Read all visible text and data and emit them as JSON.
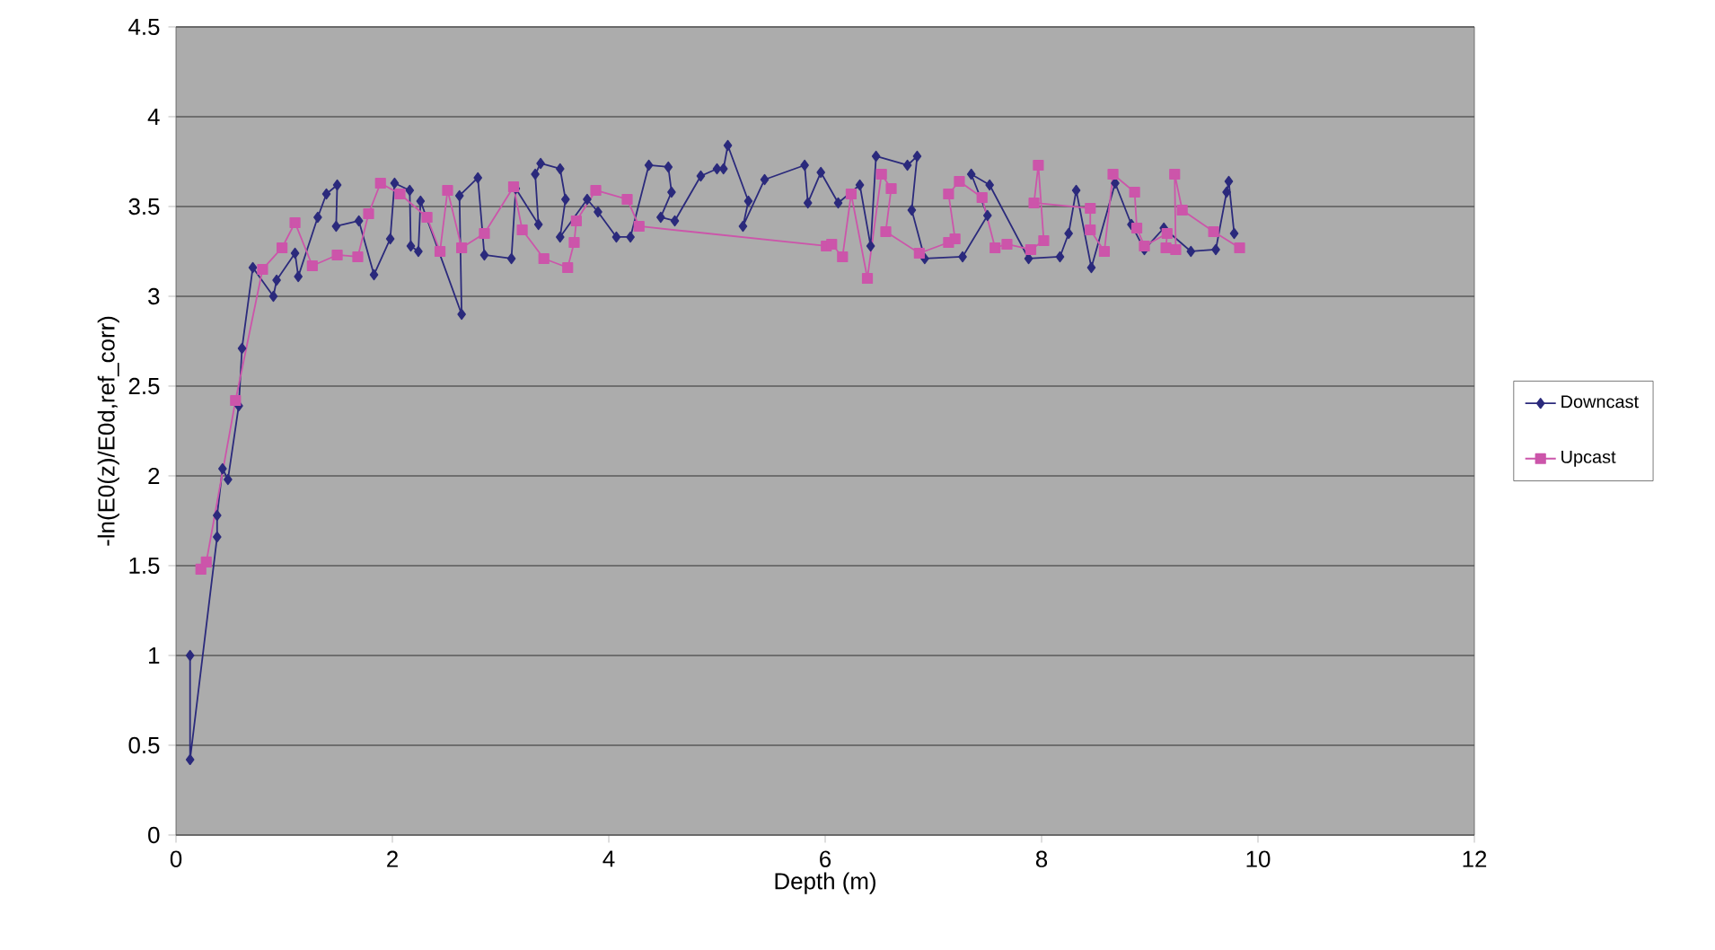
{
  "chart_data": {
    "type": "line",
    "xlabel": "Depth (m)",
    "ylabel": "-ln(E0(z)/E0d,ref_corr)",
    "xlim": [
      0,
      12
    ],
    "xticks": [
      0,
      2,
      4,
      6,
      8,
      10,
      12
    ],
    "ylim": [
      0,
      4.5
    ],
    "yticks": [
      0,
      0.5,
      1,
      1.5,
      2,
      2.5,
      3,
      3.5,
      4,
      4.5
    ],
    "grid": "y",
    "legend": "right",
    "line_style": "solid",
    "series": [
      {
        "name": "Downcast",
        "color": "#2b2a7c",
        "marker": "diamond",
        "x": [
          0.13,
          0.13,
          0.38,
          0.38,
          0.43,
          0.48,
          0.58,
          0.61,
          0.71,
          0.9,
          0.93,
          1.1,
          1.13,
          1.31,
          1.39,
          1.49,
          1.48,
          1.69,
          1.83,
          1.98,
          2.02,
          2.16,
          2.17,
          2.24,
          2.26,
          2.64,
          2.62,
          2.79,
          2.85,
          3.1,
          3.14,
          3.35,
          3.32,
          3.37,
          3.55,
          3.6,
          3.55,
          3.8,
          3.9,
          4.07,
          4.2,
          4.37,
          4.55,
          4.58,
          4.48,
          4.61,
          4.85,
          5.0,
          5.06,
          5.1,
          5.29,
          5.24,
          5.44,
          5.81,
          5.84,
          5.96,
          6.12,
          6.32,
          6.42,
          6.47,
          6.76,
          6.85,
          6.8,
          6.92,
          7.27,
          7.5,
          7.35,
          7.52,
          7.88,
          8.17,
          8.25,
          8.32,
          8.46,
          8.68,
          8.83,
          8.95,
          9.13,
          9.38,
          9.61,
          9.71,
          9.73,
          9.78
        ],
        "values": [
          1.0,
          0.42,
          1.66,
          1.78,
          2.04,
          1.98,
          2.39,
          2.71,
          3.16,
          3.0,
          3.09,
          3.24,
          3.11,
          3.44,
          3.57,
          3.62,
          3.39,
          3.42,
          3.12,
          3.32,
          3.63,
          3.59,
          3.28,
          3.25,
          3.53,
          2.9,
          3.56,
          3.66,
          3.23,
          3.21,
          3.6,
          3.4,
          3.68,
          3.74,
          3.71,
          3.54,
          3.33,
          3.54,
          3.47,
          3.33,
          3.33,
          3.73,
          3.72,
          3.58,
          3.44,
          3.42,
          3.67,
          3.71,
          3.71,
          3.84,
          3.53,
          3.39,
          3.65,
          3.73,
          3.52,
          3.69,
          3.52,
          3.62,
          3.28,
          3.78,
          3.73,
          3.78,
          3.48,
          3.21,
          3.22,
          3.45,
          3.68,
          3.62,
          3.21,
          3.22,
          3.35,
          3.59,
          3.16,
          3.63,
          3.4,
          3.26,
          3.38,
          3.25,
          3.26,
          3.58,
          3.64,
          3.35
        ]
      },
      {
        "name": "Upcast",
        "color": "#cc55aa",
        "marker": "square",
        "x": [
          0.23,
          0.28,
          0.55,
          0.8,
          0.98,
          1.1,
          1.26,
          1.49,
          1.68,
          1.78,
          1.89,
          2.07,
          2.32,
          2.44,
          2.51,
          2.64,
          2.85,
          3.12,
          3.2,
          3.4,
          3.62,
          3.68,
          3.7,
          3.88,
          4.17,
          4.28,
          6.01,
          6.06,
          6.16,
          6.24,
          6.39,
          6.52,
          6.61,
          6.56,
          6.87,
          7.14,
          7.2,
          7.14,
          7.24,
          7.45,
          7.57,
          7.68,
          7.9,
          8.02,
          7.97,
          7.93,
          8.45,
          8.45,
          8.58,
          8.66,
          8.86,
          8.88,
          8.95,
          9.16,
          9.15,
          9.24,
          9.23,
          9.3,
          9.59,
          9.83
        ],
        "values": [
          1.48,
          1.52,
          2.42,
          3.15,
          3.27,
          3.41,
          3.17,
          3.23,
          3.22,
          3.46,
          3.63,
          3.57,
          3.44,
          3.25,
          3.59,
          3.27,
          3.35,
          3.61,
          3.37,
          3.21,
          3.16,
          3.3,
          3.42,
          3.59,
          3.54,
          3.39,
          3.28,
          3.29,
          3.22,
          3.57,
          3.1,
          3.68,
          3.6,
          3.36,
          3.24,
          3.3,
          3.32,
          3.57,
          3.64,
          3.55,
          3.27,
          3.29,
          3.26,
          3.31,
          3.73,
          3.52,
          3.49,
          3.37,
          3.25,
          3.68,
          3.58,
          3.38,
          3.28,
          3.35,
          3.27,
          3.26,
          3.68,
          3.48,
          3.36,
          3.27
        ]
      }
    ]
  }
}
